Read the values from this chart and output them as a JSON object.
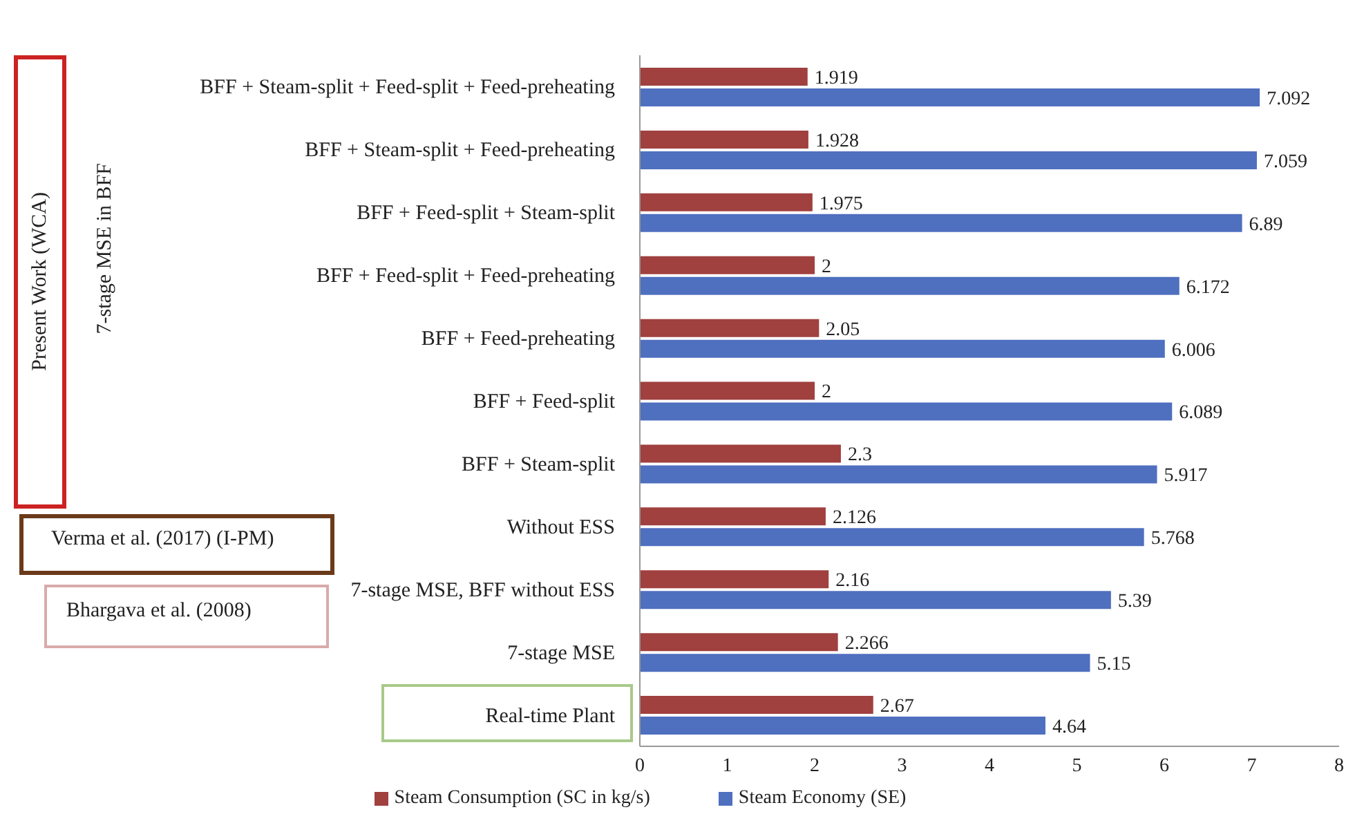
{
  "chart_data": {
    "type": "bar",
    "orientation": "horizontal",
    "categories": [
      "BFF + Steam-split  + Feed-split  + Feed-preheating",
      "BFF + Steam-split  + Feed-preheating",
      "BFF + Feed-split  + Steam-split",
      "BFF + Feed-split  + Feed-preheating",
      "BFF + Feed-preheating",
      "BFF + Feed-split",
      "BFF + Steam-split",
      "Without  ESS",
      "7-stage MSE, BFF without ESS",
      "7-stage MSE",
      "Real-time  Plant"
    ],
    "series": [
      {
        "name": "Steam Consumption (SC in kg/s)",
        "color": "#a0403f",
        "values": [
          1.919,
          1.928,
          1.975,
          2,
          2.05,
          2,
          2.3,
          2.126,
          2.16,
          2.266,
          2.67
        ]
      },
      {
        "name": "Steam Economy (SE)",
        "color": "#4f6fbf",
        "values": [
          7.092,
          7.059,
          6.89,
          6.172,
          6.006,
          6.089,
          5.917,
          5.768,
          5.39,
          5.15,
          4.64
        ]
      }
    ],
    "xlim": [
      0,
      8
    ],
    "xticks": [
      0,
      1,
      2,
      3,
      4,
      5,
      6,
      7,
      8
    ],
    "data_labels": true,
    "legend": "bottom",
    "grid": false,
    "annotations": [
      "Present  Work (WCA)",
      "7-stage MSE in BFF",
      "Verma et al. (2017) (I-PM)",
      "Bhargava  et al. (2008)"
    ]
  }
}
